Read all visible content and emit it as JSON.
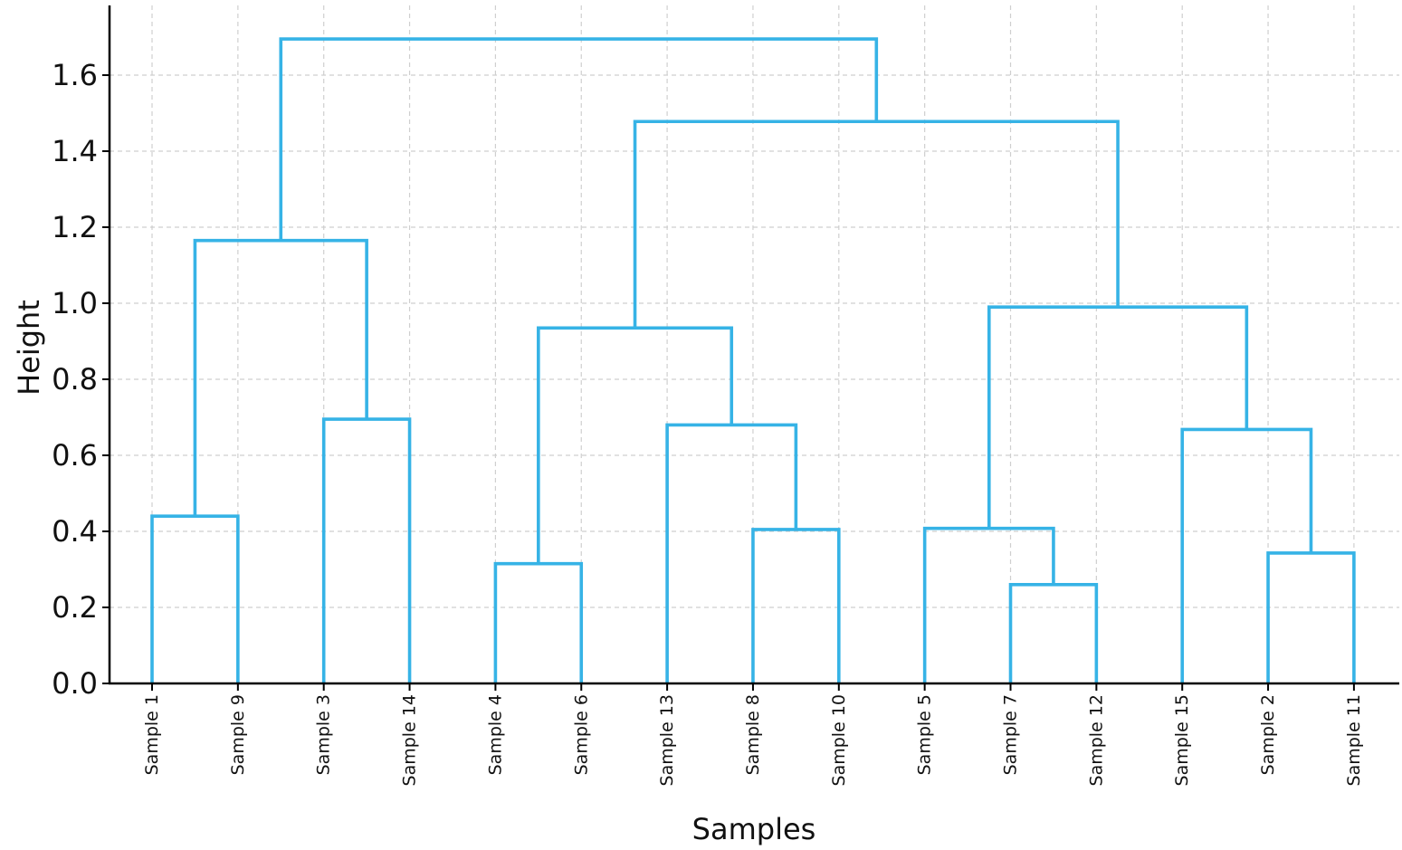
{
  "chart_data": {
    "type": "dendrogram",
    "title": "",
    "xlabel": "Samples",
    "ylabel": "Height",
    "ylim": [
      0,
      1.78
    ],
    "yticks": [
      "0.0",
      "0.2",
      "0.4",
      "0.6",
      "0.8",
      "1.0",
      "1.2",
      "1.4",
      "1.6"
    ],
    "grid": true,
    "line_color": "#36b3e6",
    "leaves": [
      "Sample 1",
      "Sample 9",
      "Sample 3",
      "Sample 14",
      "Sample 4",
      "Sample 6",
      "Sample 13",
      "Sample 8",
      "Sample 10",
      "Sample 5",
      "Sample 7",
      "Sample 12",
      "Sample 15",
      "Sample 2",
      "Sample 11"
    ],
    "merges": [
      {
        "id": "m1",
        "left": "Sample 1",
        "right": "Sample 9",
        "height": 0.44
      },
      {
        "id": "m2",
        "left": "Sample 3",
        "right": "Sample 14",
        "height": 0.695
      },
      {
        "id": "m3",
        "left": "m1",
        "right": "m2",
        "height": 1.165
      },
      {
        "id": "m4",
        "left": "Sample 4",
        "right": "Sample 6",
        "height": 0.315
      },
      {
        "id": "m5",
        "left": "Sample 8",
        "right": "Sample 10",
        "height": 0.405
      },
      {
        "id": "m6",
        "left": "Sample 13",
        "right": "m5",
        "height": 0.68
      },
      {
        "id": "m7",
        "left": "m4",
        "right": "m6",
        "height": 0.935
      },
      {
        "id": "m8",
        "left": "Sample 7",
        "right": "Sample 12",
        "height": 0.26
      },
      {
        "id": "m9",
        "left": "Sample 5",
        "right": "m8",
        "height": 0.408
      },
      {
        "id": "m10",
        "left": "Sample 2",
        "right": "Sample 11",
        "height": 0.343
      },
      {
        "id": "m11",
        "left": "Sample 15",
        "right": "m10",
        "height": 0.668
      },
      {
        "id": "m12",
        "left": "m9",
        "right": "m11",
        "height": 0.99
      },
      {
        "id": "m13",
        "left": "m7",
        "right": "m12",
        "height": 1.478
      },
      {
        "id": "m14",
        "left": "m3",
        "right": "m13",
        "height": 1.695
      }
    ]
  }
}
